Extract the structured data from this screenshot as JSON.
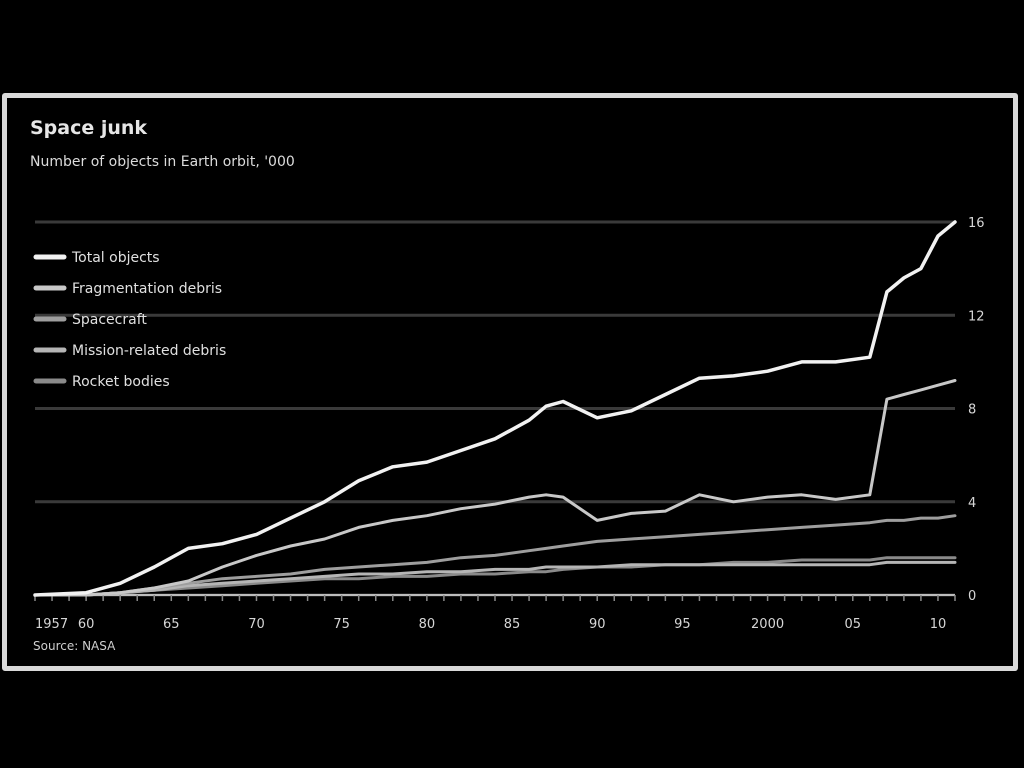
{
  "chart_data": {
    "type": "line",
    "title": "Space junk",
    "subtitle": "Number of objects in Earth orbit, '000",
    "source": "Source: NASA",
    "x_tick_labels": [
      "1957",
      "60",
      "65",
      "70",
      "75",
      "80",
      "85",
      "90",
      "95",
      "2000",
      "05",
      "10"
    ],
    "y_ticks": [
      0,
      4,
      8,
      12,
      16
    ],
    "xlim": [
      1957,
      2011
    ],
    "ylim": [
      0,
      16
    ],
    "legend_position": "top-left",
    "grid": true,
    "x": [
      1957,
      1960,
      1962,
      1964,
      1966,
      1968,
      1970,
      1972,
      1974,
      1976,
      1978,
      1980,
      1982,
      1984,
      1986,
      1987,
      1988,
      1990,
      1992,
      1994,
      1996,
      1998,
      2000,
      2002,
      2004,
      2006,
      2007,
      2008,
      2009,
      2010,
      2011
    ],
    "series": [
      {
        "name": "Total objects",
        "color": "#f2f2f2",
        "values": [
          0,
          0.1,
          0.5,
          1.2,
          2.0,
          2.2,
          2.6,
          3.3,
          4.0,
          4.9,
          5.5,
          5.7,
          6.2,
          6.7,
          7.5,
          8.1,
          8.3,
          7.6,
          7.9,
          8.6,
          9.3,
          9.4,
          9.6,
          10.0,
          10.0,
          10.2,
          13.0,
          13.6,
          14.0,
          15.4,
          16.0
        ]
      },
      {
        "name": "Fragmentation debris",
        "color": "#c8c8c8",
        "values": [
          0,
          0,
          0.1,
          0.3,
          0.6,
          1.2,
          1.7,
          2.1,
          2.4,
          2.9,
          3.2,
          3.4,
          3.7,
          3.9,
          4.2,
          4.3,
          4.2,
          3.2,
          3.5,
          3.6,
          4.3,
          4.0,
          4.2,
          4.3,
          4.1,
          4.3,
          8.4,
          8.6,
          8.8,
          9.0,
          9.2
        ]
      },
      {
        "name": "Spacecraft",
        "color": "#9e9e9e",
        "values": [
          0,
          0,
          0.1,
          0.3,
          0.5,
          0.7,
          0.8,
          0.9,
          1.1,
          1.2,
          1.3,
          1.4,
          1.6,
          1.7,
          1.9,
          2.0,
          2.1,
          2.3,
          2.4,
          2.5,
          2.6,
          2.7,
          2.8,
          2.9,
          3.0,
          3.1,
          3.2,
          3.2,
          3.3,
          3.3,
          3.4
        ]
      },
      {
        "name": "Mission-related debris",
        "color": "#b5b5b5",
        "values": [
          0,
          0,
          0.1,
          0.2,
          0.4,
          0.5,
          0.6,
          0.7,
          0.8,
          0.9,
          0.9,
          1.0,
          1.0,
          1.1,
          1.1,
          1.2,
          1.2,
          1.2,
          1.3,
          1.3,
          1.3,
          1.3,
          1.3,
          1.3,
          1.3,
          1.3,
          1.4,
          1.4,
          1.4,
          1.4,
          1.4
        ]
      },
      {
        "name": "Rocket bodies",
        "color": "#8a8a8a",
        "values": [
          0,
          0,
          0.1,
          0.2,
          0.3,
          0.4,
          0.5,
          0.6,
          0.7,
          0.7,
          0.8,
          0.8,
          0.9,
          0.9,
          1.0,
          1.0,
          1.1,
          1.2,
          1.2,
          1.3,
          1.3,
          1.4,
          1.4,
          1.5,
          1.5,
          1.5,
          1.6,
          1.6,
          1.6,
          1.6,
          1.6
        ]
      }
    ]
  }
}
